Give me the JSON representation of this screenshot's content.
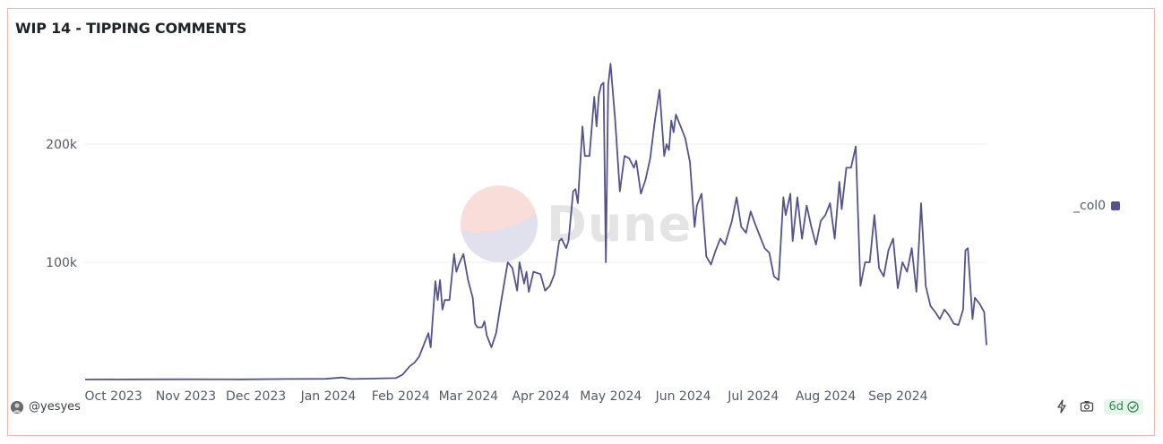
{
  "title": "WIP 14 - TIPPING COMMENTS",
  "watermark": "Dune",
  "author": "@yesyes",
  "freshness": "6d",
  "icons": {
    "author_avatar": "user-avatar-icon",
    "embed": "lightning-icon",
    "screenshot": "camera-icon",
    "status": "check-circle-icon"
  },
  "colors": {
    "series": "#54528f",
    "grid": "#ececec",
    "badge_bg": "#e6f6ea",
    "badge_fg": "#2e8b4e"
  },
  "chart_data": {
    "type": "line",
    "title": "WIP 14 - TIPPING COMMENTS",
    "xlabel": "",
    "ylabel": "",
    "x_ticks": [
      "Oct 2023",
      "Nov 2023",
      "Dec 2023",
      "Jan 2024",
      "Feb 2024",
      "Mar 2024",
      "Apr 2024",
      "May 2024",
      "Jun 2024",
      "Jul 2024",
      "Aug 2024",
      "Sep 2024"
    ],
    "y_ticks": [
      "100k",
      "200k"
    ],
    "ylim": [
      0,
      300000
    ],
    "grid": true,
    "legend_position": "right",
    "series": [
      {
        "name": "_col0",
        "color": "#54528f",
        "points": [
          [
            "2023-09-20",
            800
          ],
          [
            "2023-10-10",
            900
          ],
          [
            "2023-11-01",
            1000
          ],
          [
            "2023-11-25",
            900
          ],
          [
            "2023-12-15",
            1200
          ],
          [
            "2024-01-01",
            1400
          ],
          [
            "2024-01-08",
            2500
          ],
          [
            "2024-01-12",
            1200
          ],
          [
            "2024-01-20",
            1500
          ],
          [
            "2024-01-26",
            1800
          ],
          [
            "2024-01-31",
            2000
          ],
          [
            "2024-02-03",
            5000
          ],
          [
            "2024-02-06",
            12000
          ],
          [
            "2024-02-08",
            15000
          ],
          [
            "2024-02-10",
            20000
          ],
          [
            "2024-02-12",
            30000
          ],
          [
            "2024-02-14",
            40000
          ],
          [
            "2024-02-15",
            28000
          ],
          [
            "2024-02-17",
            84000
          ],
          [
            "2024-02-18",
            68000
          ],
          [
            "2024-02-19",
            85000
          ],
          [
            "2024-02-20",
            60000
          ],
          [
            "2024-02-21",
            68000
          ],
          [
            "2024-02-23",
            68000
          ],
          [
            "2024-02-25",
            107000
          ],
          [
            "2024-02-26",
            92000
          ],
          [
            "2024-02-27",
            98000
          ],
          [
            "2024-02-29",
            107000
          ],
          [
            "2024-03-02",
            85000
          ],
          [
            "2024-03-04",
            70000
          ],
          [
            "2024-03-05",
            48000
          ],
          [
            "2024-03-06",
            45000
          ],
          [
            "2024-03-08",
            45000
          ],
          [
            "2024-03-09",
            50000
          ],
          [
            "2024-03-10",
            38000
          ],
          [
            "2024-03-12",
            28000
          ],
          [
            "2024-03-14",
            40000
          ],
          [
            "2024-03-16",
            65000
          ],
          [
            "2024-03-19",
            100000
          ],
          [
            "2024-03-21",
            95000
          ],
          [
            "2024-03-23",
            76000
          ],
          [
            "2024-03-24",
            100000
          ],
          [
            "2024-03-26",
            82000
          ],
          [
            "2024-03-27",
            92000
          ],
          [
            "2024-03-28",
            75000
          ],
          [
            "2024-03-30",
            92000
          ],
          [
            "2024-04-02",
            90000
          ],
          [
            "2024-04-04",
            76000
          ],
          [
            "2024-04-06",
            80000
          ],
          [
            "2024-04-08",
            90000
          ],
          [
            "2024-04-10",
            118000
          ],
          [
            "2024-04-11",
            120000
          ],
          [
            "2024-04-13",
            112000
          ],
          [
            "2024-04-14",
            118000
          ],
          [
            "2024-04-16",
            160000
          ],
          [
            "2024-04-17",
            162000
          ],
          [
            "2024-04-18",
            150000
          ],
          [
            "2024-04-20",
            215000
          ],
          [
            "2024-04-21",
            190000
          ],
          [
            "2024-04-23",
            190000
          ],
          [
            "2024-04-25",
            240000
          ],
          [
            "2024-04-26",
            215000
          ],
          [
            "2024-04-27",
            242000
          ],
          [
            "2024-04-28",
            250000
          ],
          [
            "2024-04-29",
            252000
          ],
          [
            "2024-04-30",
            100000
          ],
          [
            "2024-05-01",
            250000
          ],
          [
            "2024-05-02",
            268000
          ],
          [
            "2024-05-04",
            220000
          ],
          [
            "2024-05-06",
            160000
          ],
          [
            "2024-05-08",
            190000
          ],
          [
            "2024-05-10",
            188000
          ],
          [
            "2024-05-12",
            180000
          ],
          [
            "2024-05-13",
            186000
          ],
          [
            "2024-05-15",
            158000
          ],
          [
            "2024-05-17",
            170000
          ],
          [
            "2024-05-19",
            188000
          ],
          [
            "2024-05-21",
            220000
          ],
          [
            "2024-05-23",
            246000
          ],
          [
            "2024-05-25",
            190000
          ],
          [
            "2024-05-26",
            200000
          ],
          [
            "2024-05-27",
            195000
          ],
          [
            "2024-05-28",
            220000
          ],
          [
            "2024-05-29",
            210000
          ],
          [
            "2024-05-30",
            225000
          ],
          [
            "2024-06-01",
            215000
          ],
          [
            "2024-06-03",
            205000
          ],
          [
            "2024-06-05",
            185000
          ],
          [
            "2024-06-07",
            130000
          ],
          [
            "2024-06-08",
            148000
          ],
          [
            "2024-06-10",
            158000
          ],
          [
            "2024-06-12",
            105000
          ],
          [
            "2024-06-14",
            98000
          ],
          [
            "2024-06-16",
            110000
          ],
          [
            "2024-06-18",
            120000
          ],
          [
            "2024-06-20",
            115000
          ],
          [
            "2024-06-23",
            135000
          ],
          [
            "2024-06-25",
            155000
          ],
          [
            "2024-06-27",
            130000
          ],
          [
            "2024-06-29",
            125000
          ],
          [
            "2024-07-01",
            143000
          ],
          [
            "2024-07-03",
            132000
          ],
          [
            "2024-07-05",
            122000
          ],
          [
            "2024-07-07",
            112000
          ],
          [
            "2024-07-09",
            108000
          ],
          [
            "2024-07-11",
            88000
          ],
          [
            "2024-07-13",
            85000
          ],
          [
            "2024-07-15",
            155000
          ],
          [
            "2024-07-16",
            140000
          ],
          [
            "2024-07-18",
            158000
          ],
          [
            "2024-07-19",
            118000
          ],
          [
            "2024-07-21",
            155000
          ],
          [
            "2024-07-23",
            120000
          ],
          [
            "2024-07-25",
            148000
          ],
          [
            "2024-07-27",
            130000
          ],
          [
            "2024-07-29",
            115000
          ],
          [
            "2024-07-31",
            135000
          ],
          [
            "2024-08-02",
            140000
          ],
          [
            "2024-08-04",
            150000
          ],
          [
            "2024-08-06",
            120000
          ],
          [
            "2024-08-08",
            168000
          ],
          [
            "2024-08-09",
            145000
          ],
          [
            "2024-08-11",
            180000
          ],
          [
            "2024-08-13",
            180000
          ],
          [
            "2024-08-15",
            198000
          ],
          [
            "2024-08-17",
            80000
          ],
          [
            "2024-08-19",
            100000
          ],
          [
            "2024-08-21",
            100000
          ],
          [
            "2024-08-23",
            140000
          ],
          [
            "2024-08-25",
            95000
          ],
          [
            "2024-08-27",
            88000
          ],
          [
            "2024-08-29",
            110000
          ],
          [
            "2024-08-31",
            120000
          ],
          [
            "2024-09-02",
            78000
          ],
          [
            "2024-09-04",
            100000
          ],
          [
            "2024-09-06",
            92000
          ],
          [
            "2024-09-08",
            112000
          ],
          [
            "2024-09-10",
            75000
          ],
          [
            "2024-09-12",
            150000
          ],
          [
            "2024-09-14",
            80000
          ],
          [
            "2024-09-16",
            63000
          ],
          [
            "2024-09-18",
            58000
          ],
          [
            "2024-09-20",
            52000
          ],
          [
            "2024-09-22",
            60000
          ],
          [
            "2024-09-24",
            55000
          ],
          [
            "2024-09-26",
            48000
          ],
          [
            "2024-09-28",
            47000
          ],
          [
            "2024-09-30",
            60000
          ],
          [
            "2024-10-01",
            110000
          ],
          [
            "2024-10-02",
            112000
          ],
          [
            "2024-10-04",
            52000
          ],
          [
            "2024-10-05",
            70000
          ],
          [
            "2024-10-07",
            65000
          ],
          [
            "2024-10-09",
            58000
          ],
          [
            "2024-10-10",
            30000
          ]
        ]
      }
    ]
  }
}
